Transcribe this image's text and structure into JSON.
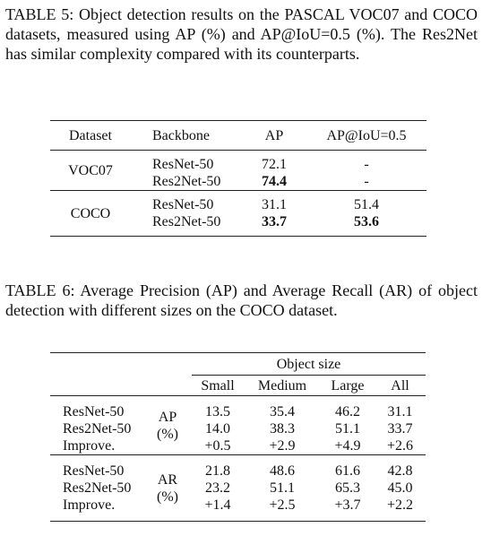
{
  "table5": {
    "caption": "TABLE 5: Object detection results on the PASCAL VOC07 and COCO datasets, measured using AP (%) and AP@IoU=0.5 (%). The Res2Net has similar complexity compared with its counterparts.",
    "header": [
      "Dataset",
      "Backbone",
      "AP",
      "AP@IoU=0.5"
    ],
    "groups": [
      {
        "dataset": "VOC07",
        "rows": [
          [
            "ResNet-50",
            "72.1",
            "-"
          ],
          [
            "Res2Net-50",
            "74.4",
            "-"
          ]
        ]
      },
      {
        "dataset": "COCO",
        "rows": [
          [
            "ResNet-50",
            "31.1",
            "51.4"
          ],
          [
            "Res2Net-50",
            "33.7",
            "53.6"
          ]
        ]
      }
    ]
  },
  "table6": {
    "caption": "TABLE 6: Average Precision (AP) and Average Recall (AR) of object detection with different sizes on the COCO dataset.",
    "spanning_header": "Object size",
    "header": [
      "Small",
      "Medium",
      "Large",
      "All"
    ],
    "groups": [
      {
        "metric": "AP",
        "unit": "(%)",
        "rows": [
          {
            "model": "ResNet-50",
            "values": [
              "13.5",
              "35.4",
              "46.2",
              "31.1"
            ]
          },
          {
            "model": "Res2Net-50",
            "values": [
              "14.0",
              "38.3",
              "51.1",
              "33.7"
            ]
          },
          {
            "model": "Improve.",
            "values": [
              "+0.5",
              "+2.9",
              "+4.9",
              "+2.6"
            ]
          }
        ]
      },
      {
        "metric": "AR",
        "unit": "(%)",
        "rows": [
          {
            "model": "ResNet-50",
            "values": [
              "21.8",
              "48.6",
              "61.6",
              "42.8"
            ]
          },
          {
            "model": "Res2Net-50",
            "values": [
              "23.2",
              "51.1",
              "65.3",
              "45.0"
            ]
          },
          {
            "model": "Improve.",
            "values": [
              "+1.4",
              "+2.5",
              "+3.7",
              "+2.2"
            ]
          }
        ]
      }
    ]
  }
}
